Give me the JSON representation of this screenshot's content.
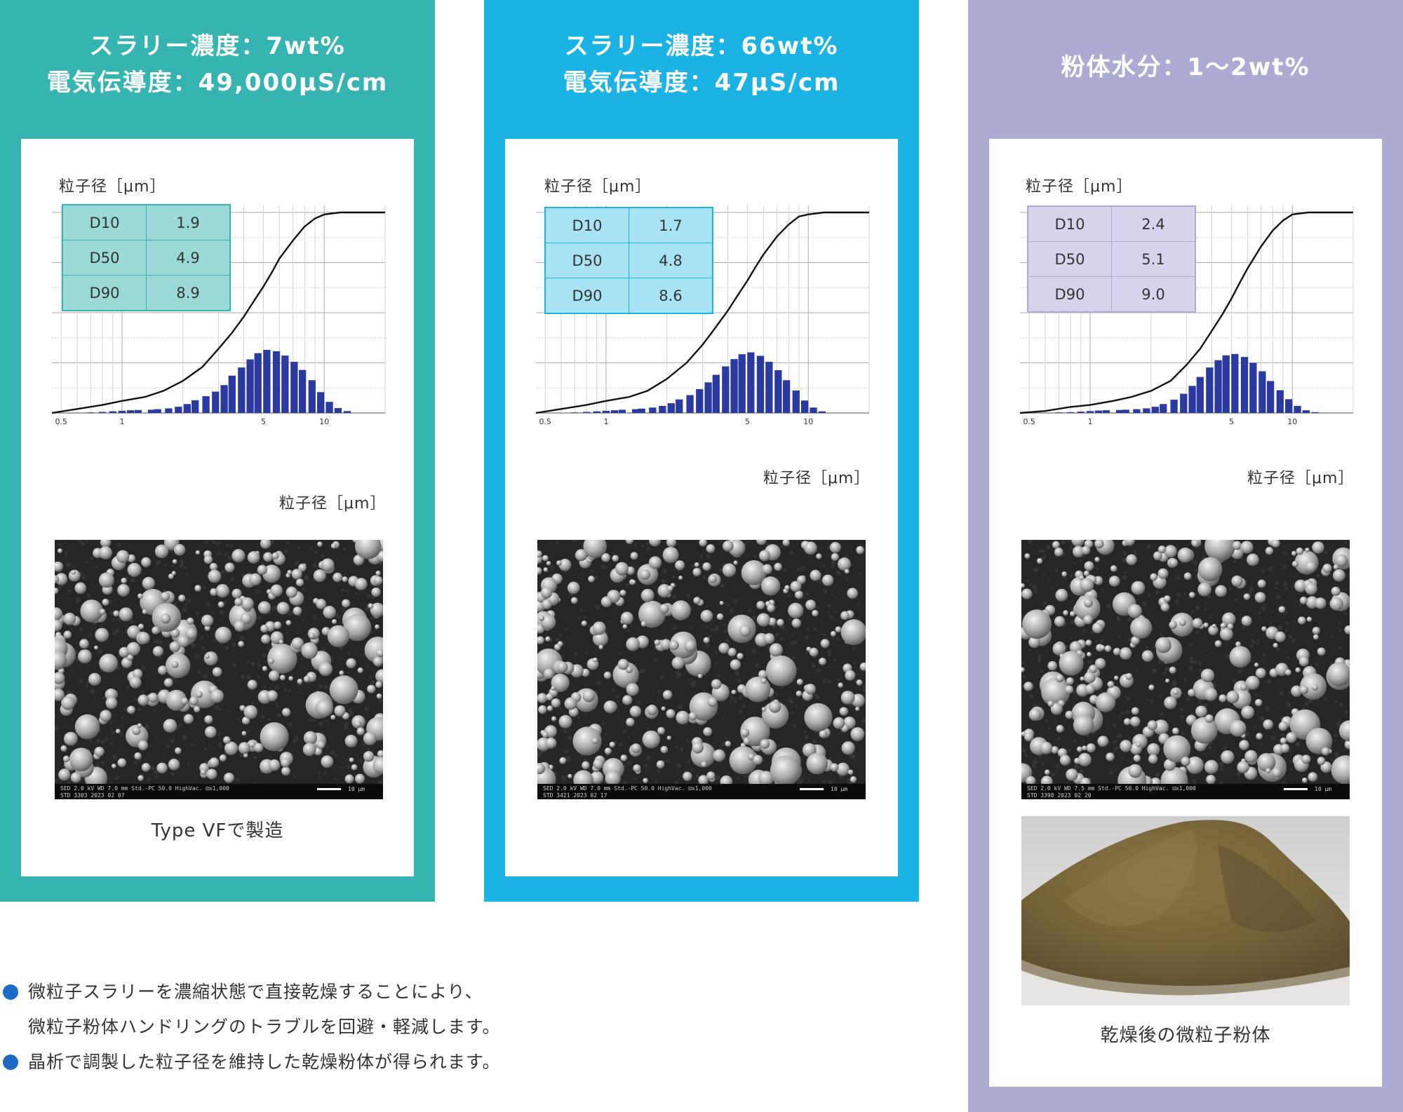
{
  "colors": {
    "panel1": "#35b4b1",
    "panel2": "#1ab3e4",
    "panel3": "#acabd4",
    "table1": "#9ad9d6",
    "table2": "#a7e2f5",
    "table3": "#d5d4ec",
    "bars": "#2b3aa0",
    "bullet": "#1e6bc7"
  },
  "panels": [
    {
      "header_line1": "スラリー濃度：7wt%",
      "header_line2": "電気伝導度：49,000μS/cm",
      "y_label": "粒子径［μm］",
      "x_label": "粒子径［μm］",
      "table": [
        {
          "label": "D10",
          "value": "1.9"
        },
        {
          "label": "D50",
          "value": "4.9"
        },
        {
          "label": "D90",
          "value": "8.9"
        }
      ],
      "sem_text": {
        "l1": "SED   2.0 kV   WD 7.0 mm   Std.-PC 50.0   HighVac.   ⊡x1,000",
        "l2": "STD   3303   2023 02 07",
        "scale": "10 μm"
      },
      "caption": "Type VFで製造"
    },
    {
      "header_line1": "スラリー濃度：66wt%",
      "header_line2": "電気伝導度：47μS/cm",
      "y_label": "粒子径［μm］",
      "x_label": "粒子径［μm］",
      "table": [
        {
          "label": "D10",
          "value": "1.7"
        },
        {
          "label": "D50",
          "value": "4.8"
        },
        {
          "label": "D90",
          "value": "8.6"
        }
      ],
      "sem_text": {
        "l1": "SED   2.0 kV   WD 7.0 mm   Std.-PC 50.0   HighVac.   ⊡x1,000",
        "l2": "STD   3421   2023 02 17",
        "scale": "10 μm"
      },
      "caption": ""
    },
    {
      "header_line1": "粉体水分：1～2wt%",
      "header_line2": "",
      "y_label": "粒子径［μm］",
      "x_label": "粒子径［μm］",
      "table": [
        {
          "label": "D10",
          "value": "2.4"
        },
        {
          "label": "D50",
          "value": "5.1"
        },
        {
          "label": "D90",
          "value": "9.0"
        }
      ],
      "sem_text": {
        "l1": "SED   2.0 kV   WD 7.5 mm   Std.-PC 50.0   HighVac.   ⊡x1,000",
        "l2": "STD   3398   2023 02 20",
        "scale": "10 μm"
      },
      "caption": "乾燥後の微粒子粉体"
    }
  ],
  "bullets": [
    {
      "line1": "微粒子スラリーを濃縮状態で直接乾燥することにより、",
      "line2": "微粒子粉体ハンドリングのトラブルを回避・軽減します。"
    },
    {
      "line1": "晶析で調製した粒子径を維持した乾燥粉体が得られます。",
      "line2": ""
    }
  ],
  "chart_data": [
    {
      "type": "bar",
      "x_scale": "log",
      "x_ticks": [
        "0.5",
        "1",
        "5",
        "10"
      ],
      "xlabel": "粒子径［μm］",
      "ylabel": "粒子径［μm］",
      "xlim": [
        0.45,
        20
      ],
      "ylim": [
        0,
        100
      ],
      "series": [
        {
          "type": "bar",
          "x": [
            0.7,
            0.8,
            0.9,
            1.0,
            1.1,
            1.2,
            1.4,
            1.5,
            1.7,
            1.9,
            2.1,
            2.3,
            2.6,
            2.9,
            3.2,
            3.5,
            3.9,
            4.3,
            4.7,
            5.2,
            5.8,
            6.4,
            7.1,
            7.8,
            8.7,
            9.6,
            10.6,
            11.7,
            13.0
          ],
          "values": [
            0.2,
            0.4,
            0.6,
            0.8,
            1.0,
            1.1,
            1.2,
            1.4,
            1.7,
            2.3,
            3.3,
            4.7,
            6.2,
            7.9,
            10.3,
            13.8,
            16.8,
            19.8,
            22.1,
            23.3,
            22.8,
            21.2,
            18.9,
            15.9,
            12.1,
            7.7,
            4.1,
            1.8,
            0.7
          ]
        },
        {
          "type": "line",
          "x": [
            0.45,
            0.6,
            0.8,
            1.0,
            1.3,
            1.6,
            2.0,
            2.5,
            3.0,
            3.5,
            4.0,
            4.5,
            5.0,
            5.5,
            6.0,
            7.0,
            8.0,
            9.0,
            10.0,
            12.0,
            14.0,
            20.0
          ],
          "values": [
            0,
            2,
            4,
            6,
            8,
            11,
            16,
            23,
            32,
            40,
            48,
            56,
            63,
            70,
            77,
            86,
            93,
            97,
            99,
            100,
            100,
            100
          ]
        }
      ]
    },
    {
      "type": "bar",
      "x_scale": "log",
      "x_ticks": [
        "0.5",
        "1",
        "5",
        "10"
      ],
      "xlabel": "粒子径［μm］",
      "ylabel": "粒子径［μm］",
      "xlim": [
        0.45,
        20
      ],
      "ylim": [
        0,
        100
      ],
      "series": [
        {
          "type": "bar",
          "x": [
            0.7,
            0.8,
            0.9,
            1.0,
            1.1,
            1.2,
            1.4,
            1.5,
            1.7,
            1.9,
            2.1,
            2.3,
            2.6,
            2.9,
            3.2,
            3.5,
            3.9,
            4.3,
            4.7,
            5.2,
            5.8,
            6.4,
            7.1,
            7.8,
            8.7,
            9.6,
            10.6,
            11.7
          ],
          "values": [
            0.2,
            0.4,
            0.6,
            0.8,
            1.0,
            1.2,
            1.4,
            1.6,
            2.0,
            2.6,
            3.6,
            5.0,
            6.6,
            8.8,
            11.3,
            14.1,
            17.2,
            19.9,
            21.7,
            22.4,
            21.1,
            18.9,
            15.8,
            12.1,
            8.3,
            4.6,
            2.0,
            0.6
          ]
        },
        {
          "type": "line",
          "x": [
            0.45,
            0.6,
            0.8,
            1.0,
            1.3,
            1.6,
            2.0,
            2.5,
            3.0,
            3.5,
            4.0,
            4.5,
            5.0,
            5.5,
            6.0,
            7.0,
            8.0,
            9.0,
            10.0,
            12.0,
            14.0,
            20.0
          ],
          "values": [
            0,
            2,
            4,
            6,
            8,
            11,
            17,
            25,
            34,
            43,
            51,
            59,
            66,
            73,
            79,
            88,
            94,
            98,
            99,
            100,
            100,
            100
          ]
        }
      ]
    },
    {
      "type": "bar",
      "x_scale": "log",
      "x_ticks": [
        "0.5",
        "1",
        "5",
        "10"
      ],
      "xlabel": "粒子径［μm］",
      "ylabel": "粒子径［μm］",
      "xlim": [
        0.45,
        20
      ],
      "ylim": [
        0,
        100
      ],
      "series": [
        {
          "type": "bar",
          "x": [
            0.7,
            0.8,
            0.9,
            1.0,
            1.1,
            1.2,
            1.4,
            1.5,
            1.7,
            1.9,
            2.1,
            2.3,
            2.6,
            2.9,
            3.2,
            3.5,
            3.9,
            4.3,
            4.7,
            5.2,
            5.8,
            6.4,
            7.1,
            7.8,
            8.7,
            9.6,
            10.6,
            11.7,
            13.0
          ],
          "values": [
            0.2,
            0.3,
            0.5,
            0.7,
            0.9,
            1.0,
            1.1,
            1.2,
            1.4,
            1.7,
            2.3,
            3.3,
            4.9,
            7.1,
            10.0,
            13.3,
            16.8,
            19.5,
            21.3,
            21.8,
            20.7,
            18.5,
            15.4,
            11.8,
            8.4,
            5.1,
            2.6,
            1.0,
            0.3
          ]
        },
        {
          "type": "line",
          "x": [
            0.45,
            0.6,
            0.8,
            1.0,
            1.3,
            1.6,
            2.0,
            2.5,
            3.0,
            3.5,
            4.0,
            4.5,
            5.0,
            5.5,
            6.0,
            7.0,
            8.0,
            9.0,
            10.0,
            12.0,
            14.0,
            20.0
          ],
          "values": [
            0,
            1,
            3,
            4,
            6,
            8,
            11,
            16,
            24,
            32,
            41,
            49,
            57,
            65,
            72,
            83,
            91,
            96,
            99,
            100,
            100,
            100
          ]
        }
      ]
    }
  ]
}
